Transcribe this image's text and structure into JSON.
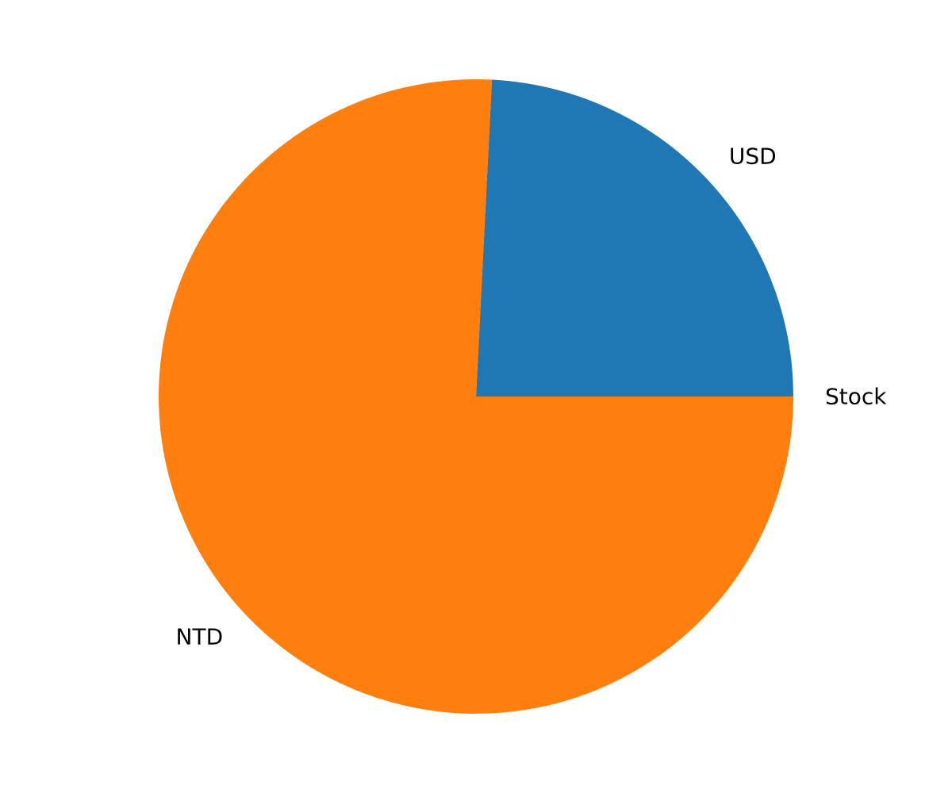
{
  "chart_data": {
    "type": "pie",
    "title": "",
    "start_angle_deg": 0,
    "direction": "counterclockwise",
    "slices": [
      {
        "label": "Stock",
        "value": 0.0,
        "color": "#1f77b4"
      },
      {
        "label": "USD",
        "value": 24.2,
        "color": "#1f77b4"
      },
      {
        "label": "NTD",
        "value": 75.8,
        "color": "#ff7f0e"
      }
    ]
  }
}
